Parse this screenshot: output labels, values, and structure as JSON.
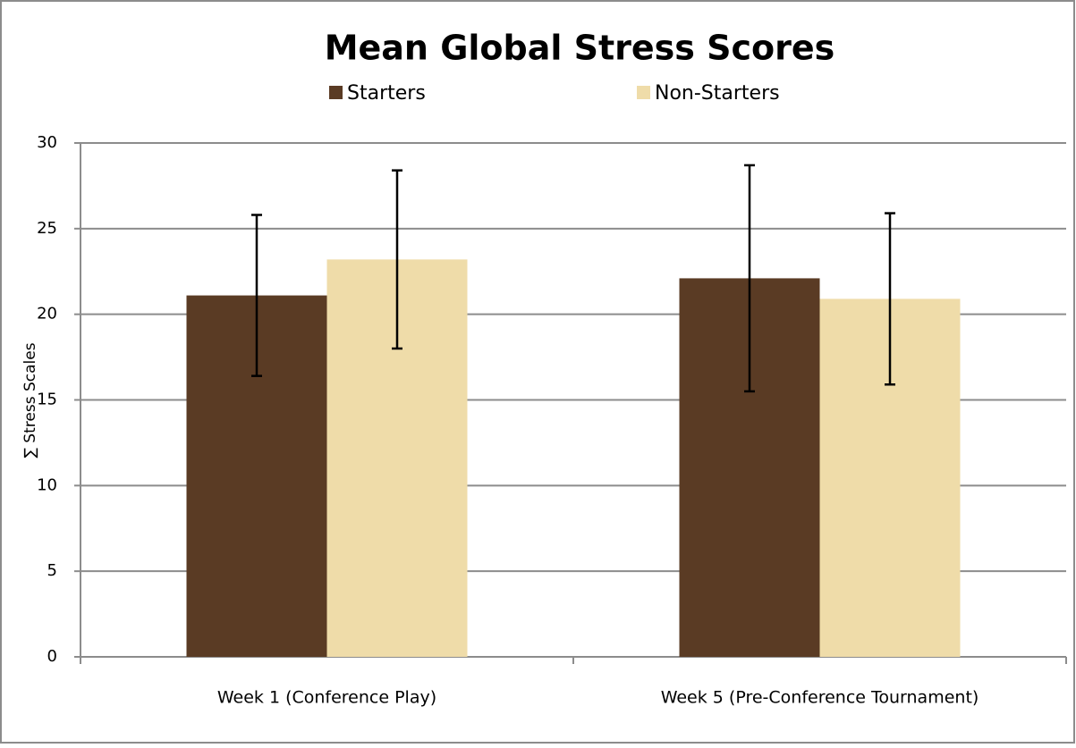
{
  "chart_data": {
    "type": "bar",
    "title": "Mean Global Stress Scores",
    "y_label": "∑ Stress Scales",
    "categories": [
      "Week 1  (Conference Play)",
      "Week 5  (Pre-Conference Tournament)"
    ],
    "series": [
      {
        "name": "Starters",
        "color": "#5a3b24",
        "values": [
          21.1,
          22.1
        ],
        "errors": [
          4.7,
          6.6
        ]
      },
      {
        "name": "Non-Starters",
        "color": "#efdca9",
        "values": [
          23.2,
          20.9
        ],
        "errors": [
          5.2,
          5.0
        ]
      }
    ],
    "ylim": [
      0,
      30
    ],
    "yticks": [
      0,
      5,
      10,
      15,
      20,
      25,
      30
    ],
    "grid": true,
    "legend": "top"
  }
}
